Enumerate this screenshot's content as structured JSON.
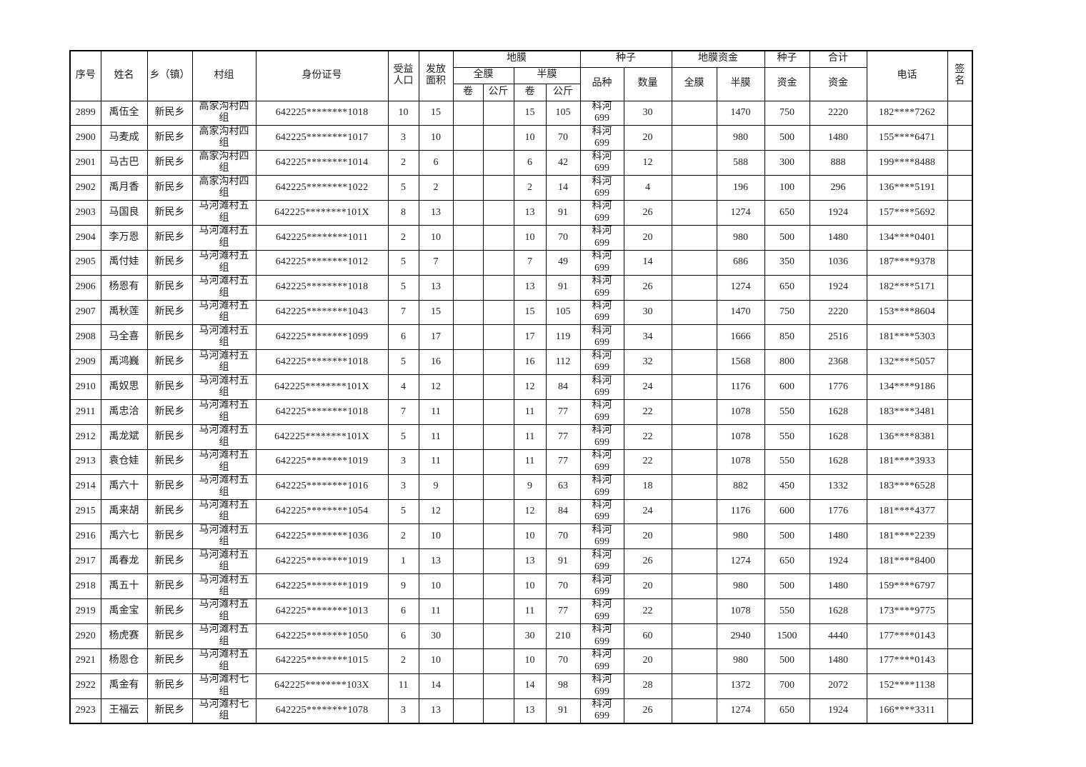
{
  "page": {
    "background": "#ffffff",
    "border_color": "#000000",
    "text_color": "#1c1c1c"
  },
  "table": {
    "header": {
      "serial": "序号",
      "name": "姓名",
      "township": "乡（镇）",
      "village": "村组",
      "id_number": "身份证号",
      "beneficiary_population": "受益\n人口",
      "issued_area": "发放\n面积",
      "plastic_film": "地膜",
      "full_film": "全膜",
      "half_film": "半膜",
      "roll": "卷",
      "kg": "公斤",
      "seed": "种子",
      "variety": "品种",
      "quantity": "数量",
      "film_fund": "地膜资金",
      "fund": "资金",
      "total": "合计",
      "phone": "电话",
      "signature": "签\n名"
    },
    "rows": [
      [
        "2899",
        "禹伍全",
        "新民乡",
        "高家沟村四\n组",
        "642225********1018",
        "10",
        "15",
        "",
        "",
        "15",
        "105",
        "科河\n699",
        "30",
        "",
        "1470",
        "750",
        "2220",
        "182****7262",
        ""
      ],
      [
        "2900",
        "马麦成",
        "新民乡",
        "高家沟村四\n组",
        "642225********1017",
        "3",
        "10",
        "",
        "",
        "10",
        "70",
        "科河\n699",
        "20",
        "",
        "980",
        "500",
        "1480",
        "155****6471",
        ""
      ],
      [
        "2901",
        "马古巴",
        "新民乡",
        "高家沟村四\n组",
        "642225********1014",
        "2",
        "6",
        "",
        "",
        "6",
        "42",
        "科河\n699",
        "12",
        "",
        "588",
        "300",
        "888",
        "199****8488",
        ""
      ],
      [
        "2902",
        "禹月香",
        "新民乡",
        "高家沟村四\n组",
        "642225********1022",
        "5",
        "2",
        "",
        "",
        "2",
        "14",
        "科河\n699",
        "4",
        "",
        "196",
        "100",
        "296",
        "136****5191",
        ""
      ],
      [
        "2903",
        "马国良",
        "新民乡",
        "马河滩村五\n组",
        "642225********101X",
        "8",
        "13",
        "",
        "",
        "13",
        "91",
        "科河\n699",
        "26",
        "",
        "1274",
        "650",
        "1924",
        "157****5692",
        ""
      ],
      [
        "2904",
        "李万恩",
        "新民乡",
        "马河滩村五\n组",
        "642225********1011",
        "2",
        "10",
        "",
        "",
        "10",
        "70",
        "科河\n699",
        "20",
        "",
        "980",
        "500",
        "1480",
        "134****0401",
        ""
      ],
      [
        "2905",
        "禹付娃",
        "新民乡",
        "马河滩村五\n组",
        "642225********1012",
        "5",
        "7",
        "",
        "",
        "7",
        "49",
        "科河\n699",
        "14",
        "",
        "686",
        "350",
        "1036",
        "187****9378",
        ""
      ],
      [
        "2906",
        "杨恩有",
        "新民乡",
        "马河滩村五\n组",
        "642225********1018",
        "5",
        "13",
        "",
        "",
        "13",
        "91",
        "科河\n699",
        "26",
        "",
        "1274",
        "650",
        "1924",
        "182****5171",
        ""
      ],
      [
        "2907",
        "禹秋莲",
        "新民乡",
        "马河滩村五\n组",
        "642225********1043",
        "7",
        "15",
        "",
        "",
        "15",
        "105",
        "科河\n699",
        "30",
        "",
        "1470",
        "750",
        "2220",
        "153****8604",
        ""
      ],
      [
        "2908",
        "马全喜",
        "新民乡",
        "马河滩村五\n组",
        "642225********1099",
        "6",
        "17",
        "",
        "",
        "17",
        "119",
        "科河\n699",
        "34",
        "",
        "1666",
        "850",
        "2516",
        "181****5303",
        ""
      ],
      [
        "2909",
        "禹鸿巍",
        "新民乡",
        "马河滩村五\n组",
        "642225********1018",
        "5",
        "16",
        "",
        "",
        "16",
        "112",
        "科河\n699",
        "32",
        "",
        "1568",
        "800",
        "2368",
        "132****5057",
        ""
      ],
      [
        "2910",
        "禹奴思",
        "新民乡",
        "马河滩村五\n组",
        "642225********101X",
        "4",
        "12",
        "",
        "",
        "12",
        "84",
        "科河\n699",
        "24",
        "",
        "1176",
        "600",
        "1776",
        "134****9186",
        ""
      ],
      [
        "2911",
        "禹忠洽",
        "新民乡",
        "马河滩村五\n组",
        "642225********1018",
        "7",
        "11",
        "",
        "",
        "11",
        "77",
        "科河\n699",
        "22",
        "",
        "1078",
        "550",
        "1628",
        "183****3481",
        ""
      ],
      [
        "2912",
        "禹龙斌",
        "新民乡",
        "马河滩村五\n组",
        "642225********101X",
        "5",
        "11",
        "",
        "",
        "11",
        "77",
        "科河\n699",
        "22",
        "",
        "1078",
        "550",
        "1628",
        "136****8381",
        ""
      ],
      [
        "2913",
        "袁仓娃",
        "新民乡",
        "马河滩村五\n组",
        "642225********1019",
        "3",
        "11",
        "",
        "",
        "11",
        "77",
        "科河\n699",
        "22",
        "",
        "1078",
        "550",
        "1628",
        "181****3933",
        ""
      ],
      [
        "2914",
        "禹六十",
        "新民乡",
        "马河滩村五\n组",
        "642225********1016",
        "3",
        "9",
        "",
        "",
        "9",
        "63",
        "科河\n699",
        "18",
        "",
        "882",
        "450",
        "1332",
        "183****6528",
        ""
      ],
      [
        "2915",
        "禹来胡",
        "新民乡",
        "马河滩村五\n组",
        "642225********1054",
        "5",
        "12",
        "",
        "",
        "12",
        "84",
        "科河\n699",
        "24",
        "",
        "1176",
        "600",
        "1776",
        "181****4377",
        ""
      ],
      [
        "2916",
        "禹六七",
        "新民乡",
        "马河滩村五\n组",
        "642225********1036",
        "2",
        "10",
        "",
        "",
        "10",
        "70",
        "科河\n699",
        "20",
        "",
        "980",
        "500",
        "1480",
        "181****2239",
        ""
      ],
      [
        "2917",
        "禹春龙",
        "新民乡",
        "马河滩村五\n组",
        "642225********1019",
        "1",
        "13",
        "",
        "",
        "13",
        "91",
        "科河\n699",
        "26",
        "",
        "1274",
        "650",
        "1924",
        "181****8400",
        ""
      ],
      [
        "2918",
        "禹五十",
        "新民乡",
        "马河滩村五\n组",
        "642225********1019",
        "9",
        "10",
        "",
        "",
        "10",
        "70",
        "科河\n699",
        "20",
        "",
        "980",
        "500",
        "1480",
        "159****6797",
        ""
      ],
      [
        "2919",
        "禹金宝",
        "新民乡",
        "马河滩村五\n组",
        "642225********1013",
        "6",
        "11",
        "",
        "",
        "11",
        "77",
        "科河\n699",
        "22",
        "",
        "1078",
        "550",
        "1628",
        "173****9775",
        ""
      ],
      [
        "2920",
        "杨虎赛",
        "新民乡",
        "马河滩村五\n组",
        "642225********1050",
        "6",
        "30",
        "",
        "",
        "30",
        "210",
        "科河\n699",
        "60",
        "",
        "2940",
        "1500",
        "4440",
        "177****0143",
        ""
      ],
      [
        "2921",
        "杨恩仓",
        "新民乡",
        "马河滩村五\n组",
        "642225********1015",
        "2",
        "10",
        "",
        "",
        "10",
        "70",
        "科河\n699",
        "20",
        "",
        "980",
        "500",
        "1480",
        "177****0143",
        ""
      ],
      [
        "2922",
        "禹金有",
        "新民乡",
        "马河滩村七\n组",
        "642225********103X",
        "11",
        "14",
        "",
        "",
        "14",
        "98",
        "科河\n699",
        "28",
        "",
        "1372",
        "700",
        "2072",
        "152****1138",
        ""
      ],
      [
        "2923",
        "王福云",
        "新民乡",
        "马河滩村七\n组",
        "642225********1078",
        "3",
        "13",
        "",
        "",
        "13",
        "91",
        "科河\n699",
        "26",
        "",
        "1274",
        "650",
        "1924",
        "166****3311",
        ""
      ]
    ]
  }
}
